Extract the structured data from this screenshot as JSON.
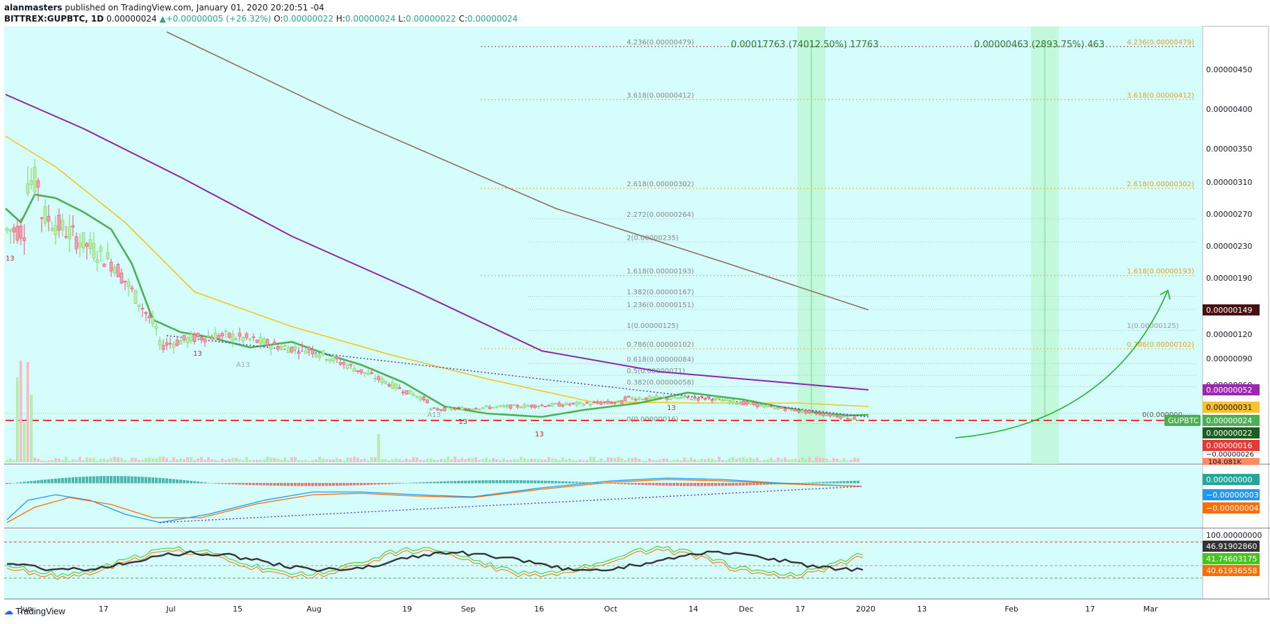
{
  "header": {
    "author": "alanmasters",
    "published_text": "published on TradingView.com, January 01, 2020 20:20:51 -04",
    "symbol": "BITTREX:GUPBTC, 1D",
    "last": "0.00000024",
    "arrow": "▲",
    "change": "+0.00000005 (+26.32%)",
    "o_label": "O:",
    "o": "0.00000022",
    "h_label": "H:",
    "h": "0.00000024",
    "l_label": "L:",
    "l": "0.00000022",
    "c_label": "C:",
    "c": "0.00000024"
  },
  "brand": {
    "name": "TradingView"
  },
  "colors": {
    "background": "#d4fdfb",
    "bull": "#8fd97a",
    "bear": "#f08a9a",
    "ema_green": "#4caf50",
    "ma_yellow": "#f5c518",
    "ma_purple": "#8e24aa",
    "ma_brown": "#8d6e63",
    "support_red": "#e53935",
    "trend_blue": "#5c2de0",
    "arrow_green": "#22b22b"
  },
  "chart_data": {
    "type": "candlestick",
    "price_axis": {
      "ticks": [
        "0.00000450",
        "0.00000400",
        "0.00000350",
        "0.00000310",
        "0.00000270",
        "0.00000230",
        "0.00000190",
        "0.00000120",
        "0.00000090",
        "0.00000060"
      ],
      "range": [
        1e-07,
        4.95e-06
      ]
    },
    "time_axis": {
      "ticks": [
        "Jun",
        "17",
        "Jul",
        "15",
        "Aug",
        "19",
        "Sep",
        "16",
        "Oct",
        "14",
        "Dec",
        "17",
        "2020",
        "13",
        "Feb",
        "17",
        "Mar"
      ]
    },
    "price_badges": [
      {
        "text": "0.00000149",
        "color": "#4a1010"
      },
      {
        "text": "0.00000052",
        "color": "#9c27b0"
      },
      {
        "text": "0.00000031",
        "color": "#fbc02d"
      },
      {
        "text": "0.00000024",
        "color": "#4caf50"
      },
      {
        "text": "0.00000022",
        "color": "#1b5e20"
      },
      {
        "text": "0.00000016",
        "color": "#e53935"
      }
    ],
    "symbol_badge": "GUPBTC",
    "volume_badge": "104.081K",
    "volume_right_tick": "−0.00000026",
    "fib_levels": [
      {
        "level": "4.236(0.00000479)",
        "price": 4.79e-06
      },
      {
        "level": "3.618(0.00000412)",
        "price": 4.12e-06
      },
      {
        "level": "2.618(0.00000302)",
        "price": 3.02e-06
      },
      {
        "level": "2.272(0.00000264)",
        "price": 2.64e-06
      },
      {
        "level": "2(0.00000235)",
        "price": 2.35e-06
      },
      {
        "level": "1.618(0.00000193)",
        "price": 1.93e-06
      },
      {
        "level": "1.382(0.00000167)",
        "price": 1.67e-06
      },
      {
        "level": "1.236(0.00000151)",
        "price": 1.51e-06
      },
      {
        "level": "1(0.00000125)",
        "price": 1.25e-06
      },
      {
        "level": "0.786(0.00000102)",
        "price": 1.02e-06
      },
      {
        "level": "0.618(0.00000084)",
        "price": 8.4e-07
      },
      {
        "level": "0.5(0.00000071)",
        "price": 7.1e-07
      },
      {
        "level": "0.382(0.00000058)",
        "price": 5.8e-07
      },
      {
        "level": "0(0.00000016)",
        "price": 1.6e-07
      }
    ],
    "target_labels": [
      "0.00017763 (74012.50%) 17763",
      "0.00000463 (2893.75%) 463"
    ],
    "zero_label": "0(0.000000",
    "macd_badges": [
      {
        "text": "0.00000000",
        "color": "#26a69a"
      },
      {
        "text": "−0.00000003",
        "color": "#2196f3"
      },
      {
        "text": "−0.00000004",
        "color": "#ff6d00"
      }
    ],
    "stoch_badges": [
      {
        "text": "100.00000000",
        "color": "none"
      },
      {
        "text": "46.91902860",
        "color": "#333333"
      },
      {
        "text": "41.74603175",
        "color": "#43c81a"
      },
      {
        "text": "40.61936558",
        "color": "#ff6d00"
      }
    ],
    "seq_marks": [
      "13",
      "A13",
      "13",
      "13",
      "A13",
      "13",
      "13"
    ]
  }
}
